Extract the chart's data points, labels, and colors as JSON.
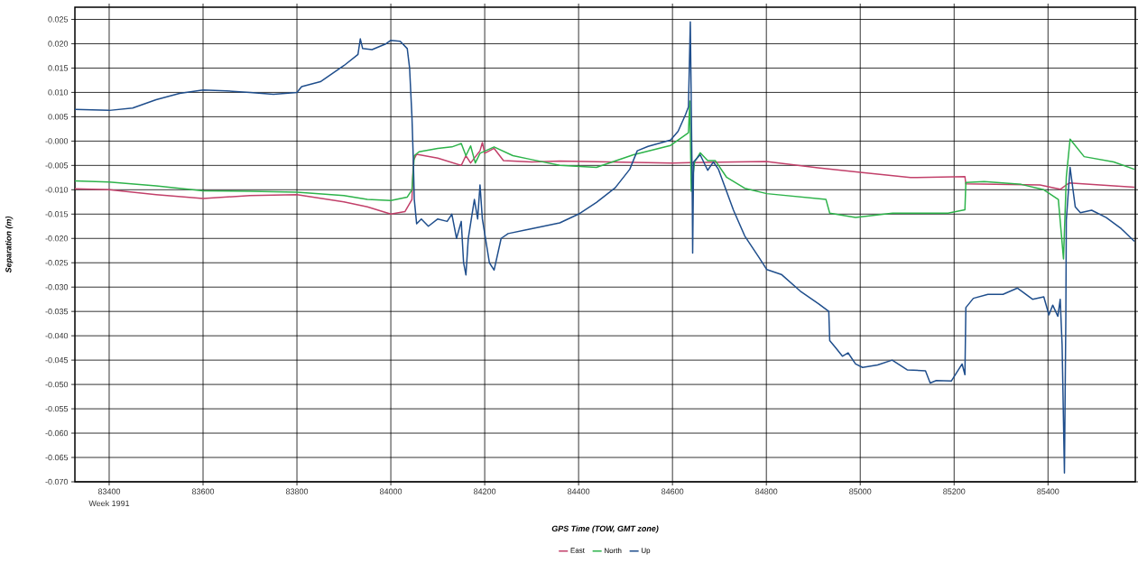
{
  "chart_data": {
    "type": "line",
    "xlabel": "GPS Time (TOW, GMT zone)",
    "ylabel": "Separation (m)",
    "annotations": [
      "Week 1991"
    ],
    "xlim": [
      83327,
      85586
    ],
    "ylim": [
      -0.07,
      0.0275
    ],
    "xticks": [
      83400,
      83600,
      83800,
      84000,
      84200,
      84400,
      84600,
      84800,
      85000,
      85200,
      85400
    ],
    "yticks": [
      {
        "value": 0.025,
        "label": "0.025"
      },
      {
        "value": 0.02,
        "label": "0.020"
      },
      {
        "value": 0.015,
        "label": "0.015"
      },
      {
        "value": 0.01,
        "label": "0.010"
      },
      {
        "value": 0.005,
        "label": "0.005"
      },
      {
        "value": 0,
        "label": "-0.000"
      },
      {
        "value": -0.005,
        "label": "-0.005"
      },
      {
        "value": -0.01,
        "label": "-0.010"
      },
      {
        "value": -0.015,
        "label": "-0.015"
      },
      {
        "value": -0.02,
        "label": "-0.020"
      },
      {
        "value": -0.025,
        "label": "-0.025"
      },
      {
        "value": -0.03,
        "label": "-0.030"
      },
      {
        "value": -0.035,
        "label": "-0.035"
      },
      {
        "value": -0.04,
        "label": "-0.040"
      },
      {
        "value": -0.045,
        "label": "-0.045"
      },
      {
        "value": -0.05,
        "label": "-0.050"
      },
      {
        "value": -0.055,
        "label": "-0.055"
      },
      {
        "value": -0.06,
        "label": "-0.060"
      },
      {
        "value": -0.065,
        "label": "-0.065"
      },
      {
        "value": -0.07,
        "label": "-0.070"
      }
    ],
    "grid": true,
    "legend": "bottom",
    "line_style": "solid",
    "series": [
      {
        "name": "East",
        "color": "#c2406a",
        "x": [
          83327,
          83400,
          83500,
          83600,
          83700,
          83800,
          83900,
          83950,
          84000,
          84030,
          84045,
          84048,
          84055,
          84100,
          84150,
          84160,
          84170,
          84190,
          84195,
          84200,
          84220,
          84240,
          84300,
          84360,
          84600,
          84800,
          84910,
          85000,
          85107,
          85223,
          85225,
          85383,
          85426,
          85445,
          85584
        ],
        "values": [
          -0.0098,
          -0.01,
          -0.011,
          -0.0118,
          -0.0112,
          -0.011,
          -0.0125,
          -0.0135,
          -0.015,
          -0.0145,
          -0.012,
          -0.004,
          -0.0027,
          -0.0035,
          -0.005,
          -0.003,
          -0.0045,
          -0.002,
          -0.0003,
          -0.0025,
          -0.0015,
          -0.004,
          -0.0043,
          -0.0041,
          -0.0045,
          -0.0042,
          -0.0055,
          -0.0064,
          -0.0075,
          -0.0073,
          -0.0088,
          -0.009,
          -0.0099,
          -0.0086,
          -0.0095
        ]
      },
      {
        "name": "North",
        "color": "#2db34a",
        "x": [
          83327,
          83400,
          83500,
          83600,
          83700,
          83800,
          83900,
          83950,
          84000,
          84035,
          84045,
          84050,
          84060,
          84100,
          84130,
          84150,
          84160,
          84170,
          84180,
          84190,
          84220,
          84260,
          84300,
          84360,
          84438,
          84517,
          84596,
          84634,
          84637,
          84640,
          84647,
          84659,
          84675,
          84691,
          84715,
          84754,
          84801,
          84927,
          84935,
          84990,
          85069,
          85187,
          85223,
          85225,
          85264,
          85343,
          85391,
          85422,
          85433,
          85439,
          85447,
          85477,
          85540,
          85584
        ],
        "values": [
          -0.0082,
          -0.0084,
          -0.0092,
          -0.0102,
          -0.0103,
          -0.0105,
          -0.0112,
          -0.012,
          -0.0122,
          -0.0115,
          -0.01,
          -0.003,
          -0.0022,
          -0.0015,
          -0.0012,
          -0.0005,
          -0.003,
          -0.001,
          -0.0045,
          -0.0025,
          -0.0012,
          -0.003,
          -0.0038,
          -0.005,
          -0.0054,
          -0.0028,
          -0.0009,
          0.0017,
          0.0082,
          -0.0103,
          -0.0043,
          -0.0024,
          -0.004,
          -0.004,
          -0.0074,
          -0.0097,
          -0.0108,
          -0.012,
          -0.0148,
          -0.0157,
          -0.0148,
          -0.0148,
          -0.0141,
          -0.0085,
          -0.0083,
          -0.0089,
          -0.01,
          -0.012,
          -0.0242,
          -0.0074,
          0.0004,
          -0.0032,
          -0.0043,
          -0.0058
        ]
      },
      {
        "name": "Up",
        "color": "#1f4e8c",
        "x": [
          83327,
          83400,
          83450,
          83500,
          83550,
          83600,
          83650,
          83700,
          83750,
          83800,
          83810,
          83850,
          83900,
          83930,
          83935,
          83940,
          83960,
          83990,
          84000,
          84020,
          84035,
          84040,
          84045,
          84048,
          84050,
          84055,
          84065,
          84080,
          84100,
          84120,
          84130,
          84140,
          84150,
          84155,
          84160,
          84165,
          84178,
          84185,
          84190,
          84195,
          84210,
          84220,
          84235,
          84250,
          84300,
          84360,
          84400,
          84438,
          84478,
          84509,
          84525,
          84548,
          84596,
          84612,
          84628,
          84634,
          84638,
          84642,
          84643,
          84645,
          84659,
          84675,
          84687,
          84698,
          84730,
          84754,
          84785,
          84801,
          84832,
          84872,
          84911,
          84933,
          84935,
          84947,
          84962,
          84974,
          84990,
          85005,
          85037,
          85068,
          85100,
          85139,
          85149,
          85162,
          85194,
          85217,
          85223,
          85225,
          85241,
          85272,
          85304,
          85335,
          85367,
          85391,
          85402,
          85410,
          85421,
          85426,
          85430,
          85435,
          85438,
          85439,
          85447,
          85458,
          85469,
          85493,
          85524,
          85556,
          85584
        ],
        "values": [
          0.0065,
          0.0063,
          0.0068,
          0.0085,
          0.0098,
          0.0105,
          0.0103,
          0.01,
          0.0096,
          0.01,
          0.0112,
          0.0122,
          0.0155,
          0.0178,
          0.021,
          0.019,
          0.0188,
          0.02,
          0.0207,
          0.0205,
          0.019,
          0.015,
          0.005,
          -0.004,
          -0.012,
          -0.017,
          -0.016,
          -0.0175,
          -0.016,
          -0.0165,
          -0.015,
          -0.02,
          -0.0165,
          -0.025,
          -0.0275,
          -0.02,
          -0.012,
          -0.016,
          -0.009,
          -0.016,
          -0.025,
          -0.0265,
          -0.02,
          -0.019,
          -0.018,
          -0.0168,
          -0.015,
          -0.0126,
          -0.0096,
          -0.0058,
          -0.002,
          -0.0011,
          0.0002,
          0.002,
          0.0055,
          0.007,
          0.0245,
          -0.009,
          -0.023,
          -0.0043,
          -0.0028,
          -0.006,
          -0.0043,
          -0.0058,
          -0.0142,
          -0.0195,
          -0.024,
          -0.0264,
          -0.0274,
          -0.0308,
          -0.0334,
          -0.035,
          -0.041,
          -0.0424,
          -0.0442,
          -0.0435,
          -0.0458,
          -0.0465,
          -0.046,
          -0.045,
          -0.047,
          -0.0472,
          -0.0497,
          -0.0492,
          -0.0493,
          -0.0458,
          -0.048,
          -0.0342,
          -0.0323,
          -0.0315,
          -0.0315,
          -0.0302,
          -0.0325,
          -0.032,
          -0.0357,
          -0.0337,
          -0.036,
          -0.0325,
          -0.0418,
          -0.0682,
          -0.036,
          -0.0163,
          -0.0054,
          -0.0135,
          -0.0147,
          -0.0142,
          -0.0157,
          -0.018,
          -0.0206
        ]
      }
    ]
  }
}
